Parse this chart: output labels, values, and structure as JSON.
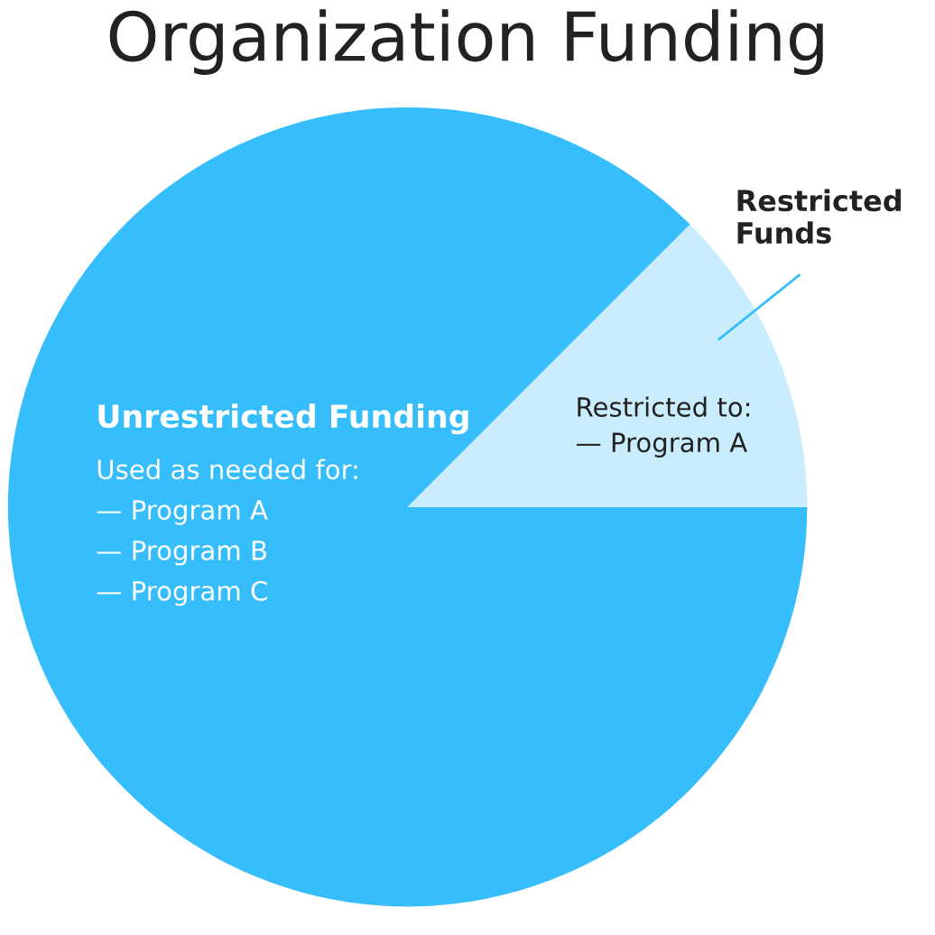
{
  "chart_data": {
    "type": "pie",
    "title": "Organization Funding",
    "categories": [
      "Unrestricted Funding",
      "Restricted Funds"
    ],
    "values": [
      87.5,
      12.5
    ],
    "colors": [
      "#36bdfc",
      "#c9edfd"
    ],
    "annotations": [
      "Used as needed for:\n— Program A\n— Program B\n— Program C",
      "Restricted to:\n— Program A"
    ]
  }
}
